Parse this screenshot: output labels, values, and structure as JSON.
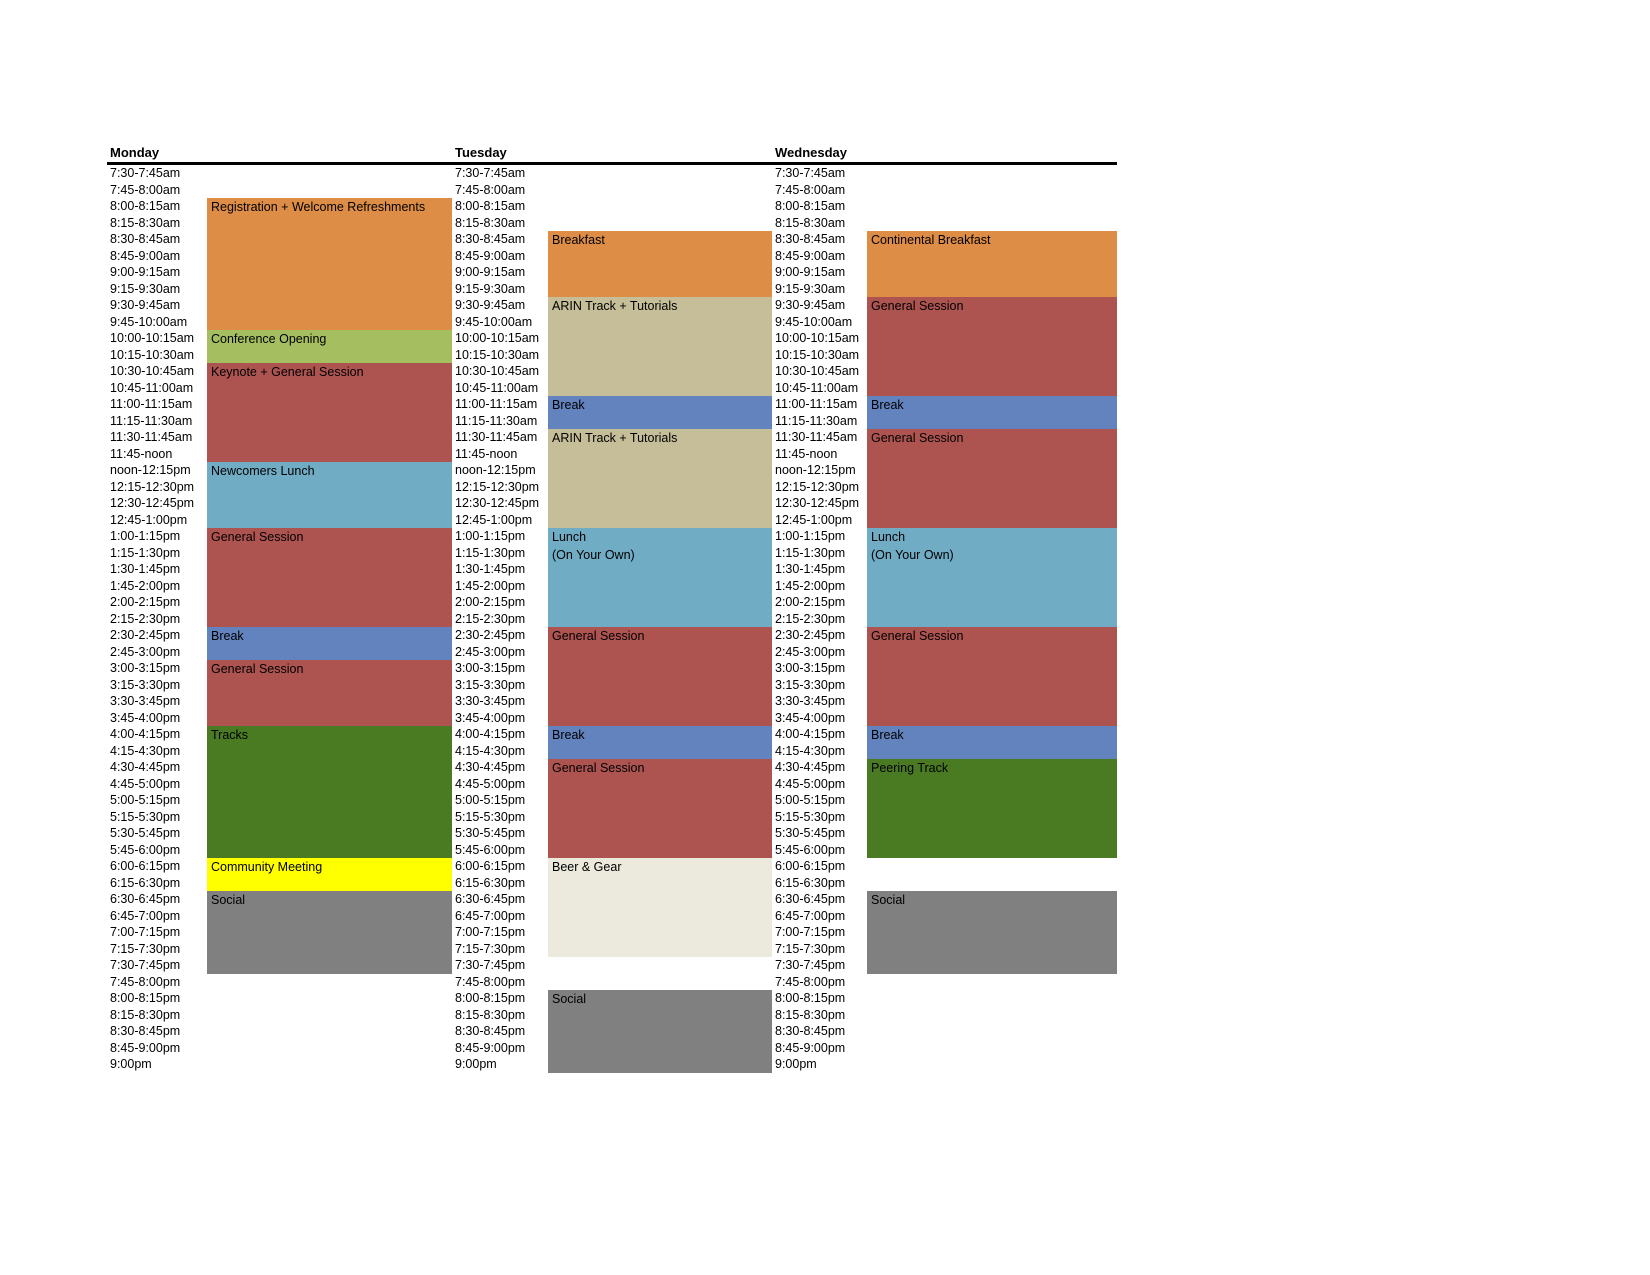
{
  "colors": {
    "orange": "#DD8D45",
    "light_green": "#A5BF60",
    "red": "#AD5451",
    "light_blue": "#71ACC5",
    "blue": "#6383BE",
    "tan": "#C6BE98",
    "dark_green": "#4A7A22",
    "yellow": "#FFFF00",
    "gray": "#808080",
    "ivory": "#ECE9DD"
  },
  "time_slots": [
    "7:30-7:45am",
    "7:45-8:00am",
    "8:00-8:15am",
    "8:15-8:30am",
    "8:30-8:45am",
    "8:45-9:00am",
    "9:00-9:15am",
    "9:15-9:30am",
    "9:30-9:45am",
    "9:45-10:00am",
    "10:00-10:15am",
    "10:15-10:30am",
    "10:30-10:45am",
    "10:45-11:00am",
    "11:00-11:15am",
    "11:15-11:30am",
    "11:30-11:45am",
    "11:45-noon",
    "noon-12:15pm",
    "12:15-12:30pm",
    "12:30-12:45pm",
    "12:45-1:00pm",
    "1:00-1:15pm",
    "1:15-1:30pm",
    "1:30-1:45pm",
    "1:45-2:00pm",
    "2:00-2:15pm",
    "2:15-2:30pm",
    "2:30-2:45pm",
    "2:45-3:00pm",
    "3:00-3:15pm",
    "3:15-3:30pm",
    "3:30-3:45pm",
    "3:45-4:00pm",
    "4:00-4:15pm",
    "4:15-4:30pm",
    "4:30-4:45pm",
    "4:45-5:00pm",
    "5:00-5:15pm",
    "5:15-5:30pm",
    "5:30-5:45pm",
    "5:45-6:00pm",
    "6:00-6:15pm",
    "6:15-6:30pm",
    "6:30-6:45pm",
    "6:45-7:00pm",
    "7:00-7:15pm",
    "7:15-7:30pm",
    "7:30-7:45pm",
    "7:45-8:00pm",
    "8:00-8:15pm",
    "8:15-8:30pm",
    "8:30-8:45pm",
    "8:45-9:00pm",
    "9:00pm"
  ],
  "days": [
    {
      "name": "Monday",
      "events": [
        {
          "label": [
            "Registration + Welcome Refreshments"
          ],
          "start": 2,
          "span": 8,
          "color": "orange"
        },
        {
          "label": [
            "Conference Opening"
          ],
          "start": 10,
          "span": 2,
          "color": "light_green"
        },
        {
          "label": [
            "Keynote + General Session"
          ],
          "start": 12,
          "span": 6,
          "color": "red"
        },
        {
          "label": [
            "Newcomers Lunch"
          ],
          "start": 18,
          "span": 4,
          "color": "light_blue"
        },
        {
          "label": [
            "General Session"
          ],
          "start": 22,
          "span": 6,
          "color": "red"
        },
        {
          "label": [
            "Break"
          ],
          "start": 28,
          "span": 2,
          "color": "blue"
        },
        {
          "label": [
            "General Session"
          ],
          "start": 30,
          "span": 4,
          "color": "red"
        },
        {
          "label": [
            "Tracks"
          ],
          "start": 34,
          "span": 8,
          "color": "dark_green"
        },
        {
          "label": [
            "Community Meeting"
          ],
          "start": 42,
          "span": 2,
          "color": "yellow"
        },
        {
          "label": [
            "Social"
          ],
          "start": 44,
          "span": 5,
          "color": "gray"
        }
      ]
    },
    {
      "name": "Tuesday",
      "events": [
        {
          "label": [
            "Breakfast"
          ],
          "start": 4,
          "span": 4,
          "color": "orange"
        },
        {
          "label": [
            "ARIN Track + Tutorials"
          ],
          "start": 8,
          "span": 6,
          "color": "tan"
        },
        {
          "label": [
            "Break"
          ],
          "start": 14,
          "span": 2,
          "color": "blue"
        },
        {
          "label": [
            "ARIN Track + Tutorials"
          ],
          "start": 16,
          "span": 6,
          "color": "tan"
        },
        {
          "label": [
            "Lunch",
            "(On Your Own)"
          ],
          "start": 22,
          "span": 6,
          "color": "light_blue"
        },
        {
          "label": [
            "General Session"
          ],
          "start": 28,
          "span": 6,
          "color": "red"
        },
        {
          "label": [
            "Break"
          ],
          "start": 34,
          "span": 2,
          "color": "blue"
        },
        {
          "label": [
            "General Session"
          ],
          "start": 36,
          "span": 6,
          "color": "red"
        },
        {
          "label": [
            "Beer & Gear"
          ],
          "start": 42,
          "span": 6,
          "color": "ivory"
        },
        {
          "label": [
            "Social"
          ],
          "start": 50,
          "span": 5,
          "color": "gray"
        }
      ]
    },
    {
      "name": "Wednesday",
      "events": [
        {
          "label": [
            "Continental Breakfast"
          ],
          "start": 4,
          "span": 4,
          "color": "orange"
        },
        {
          "label": [
            "General Session"
          ],
          "start": 8,
          "span": 6,
          "color": "red"
        },
        {
          "label": [
            "Break"
          ],
          "start": 14,
          "span": 2,
          "color": "blue"
        },
        {
          "label": [
            "General Session"
          ],
          "start": 16,
          "span": 6,
          "color": "red"
        },
        {
          "label": [
            "Lunch",
            "(On Your Own)"
          ],
          "start": 22,
          "span": 6,
          "color": "light_blue"
        },
        {
          "label": [
            "General Session"
          ],
          "start": 28,
          "span": 6,
          "color": "red"
        },
        {
          "label": [
            "Break"
          ],
          "start": 34,
          "span": 2,
          "color": "blue"
        },
        {
          "label": [
            "Peering Track"
          ],
          "start": 36,
          "span": 6,
          "color": "dark_green"
        },
        {
          "label": [
            "Social"
          ],
          "start": 44,
          "span": 5,
          "color": "gray"
        }
      ]
    }
  ]
}
